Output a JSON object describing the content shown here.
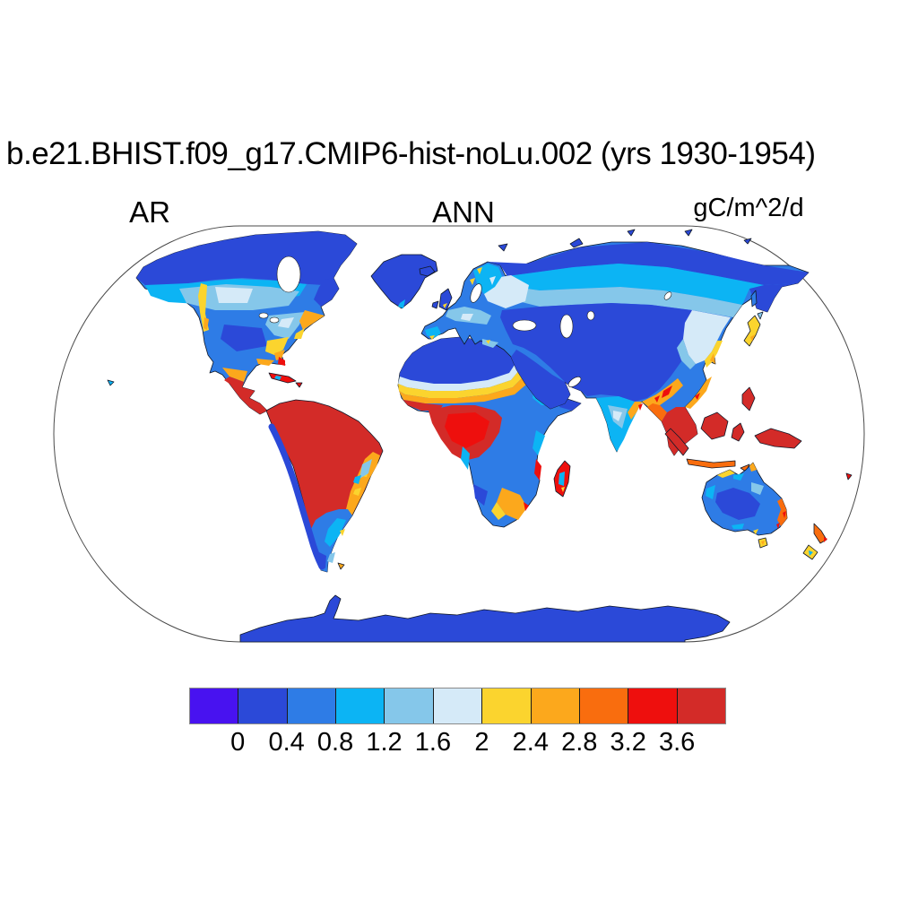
{
  "figure": {
    "title": "b.e21.BHIST.f09_g17.CMIP6-hist-noLu.002 (yrs 1930-1954)",
    "variable_label": "AR",
    "season_label": "ANN",
    "units_label": "gC/m^2/d"
  },
  "chart_data": {
    "type": "heatmap",
    "subtype": "filled-contour world map",
    "projection": "Robinson",
    "title": "b.e21.BHIST.f09_g17.CMIP6-hist-noLu.002 (yrs 1930-1954)",
    "variable": "AR",
    "season": "ANN",
    "units": "gC/m^2/d",
    "background": "#ffffff",
    "grid": false,
    "colorbar": {
      "orientation": "horizontal",
      "position": "bottom",
      "levels": [
        0,
        0.4,
        0.8,
        1.2,
        1.6,
        2,
        2.4,
        2.8,
        3.2,
        3.6
      ],
      "tick_labels": [
        "0",
        "0.4",
        "0.8",
        "1.2",
        "1.6",
        "2",
        "2.4",
        "2.8",
        "3.2",
        "3.6"
      ],
      "colors": [
        "#4812f0",
        "#2b49d8",
        "#2e7ce6",
        "#0cb4f4",
        "#85c7ea",
        "#d5eaf8",
        "#fbd42e",
        "#fca81c",
        "#f96d0e",
        "#ee0f0d",
        "#d32b28"
      ],
      "outer_border_color": "#8a8a8a",
      "divider_color": "#1a1a1a"
    },
    "regions": [
      {
        "region": "Amazon basin and Central America",
        "value": "> 3.6 (dark red)"
      },
      {
        "region": "Congo basin",
        "value": "> 3.6 (dark red)"
      },
      {
        "region": "Maritime Continent (Indonesia, New Guinea, Philippines) and Indochina",
        "value": "> 3.6 (dark red)"
      },
      {
        "region": "Sahara, Arabian Peninsula, Iran/Central Asia, Tibet",
        "value": "0-0.4 (royal blue)"
      },
      {
        "region": "High Arctic, Greenland, Antarctica",
        "value": "0-0.4 (royal blue)"
      },
      {
        "region": "Boreal Canada and central Siberia",
        "value": "0.8-2 (cyan to pale blue band)"
      },
      {
        "region": "Eastern China and eastern US",
        "value": "1.2-2 (light/pale blue)"
      },
      {
        "region": "Southeast US coast, Sahel, south China coast, Japan, NE China coast",
        "value": "2-3.2 (yellow to orange)"
      },
      {
        "region": "Florida, Mexico, Mozambique coast, east Australia coast, New Zealand north",
        "value": "2.8-3.6 (orange to red)"
      },
      {
        "region": "Central Australia and Patagonia",
        "value": "0-0.8 (royal/medium blue)"
      },
      {
        "region": "India",
        "value": "0.8-1.6 (cyan/light blue) with 2.4-3.6 along northeast edge"
      },
      {
        "region": "Eastern Brazil",
        "value": "mixed 1.2-3.2 (light blue with yellow/orange)"
      }
    ]
  }
}
